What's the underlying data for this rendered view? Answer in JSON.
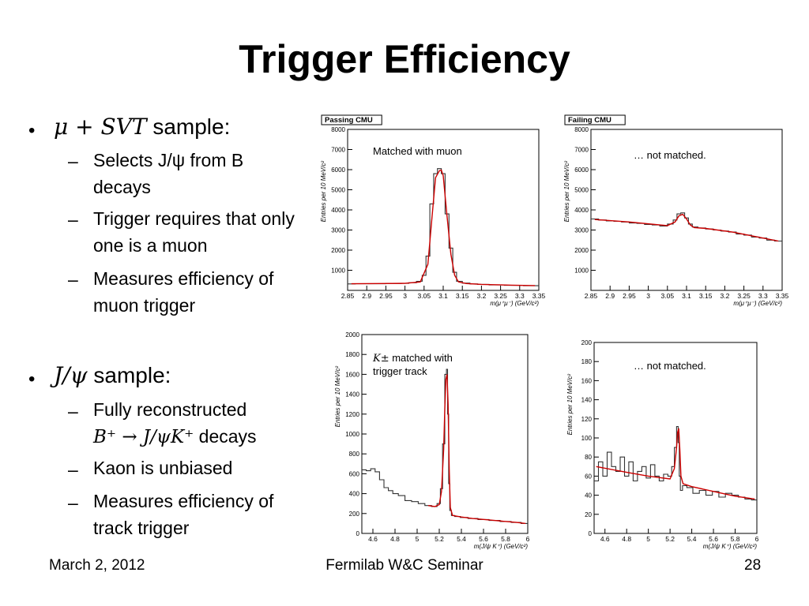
{
  "slide": {
    "title": "Trigger Efficiency",
    "bullet1": {
      "math": "μ + SVT",
      "text": " sample:"
    },
    "bullet1_items": [
      "Selects J/ψ from B decays",
      "Trigger requires that only one is a muon",
      "Measures efficiency of muon trigger"
    ],
    "bullet2": {
      "math": "J/ψ",
      "text": " sample:"
    },
    "bullet2_items": [
      {
        "line1": "Fully reconstructed",
        "math": "B⁺ → J/ψK⁺",
        "line2": " decays"
      },
      {
        "line1": "Kaon is unbiased"
      },
      {
        "line1": "Measures efficiency of",
        "line2": "track trigger"
      }
    ],
    "footer": {
      "date": "March 2, 2012",
      "center": "Fermilab W&C Seminar",
      "page": "28"
    }
  },
  "chart_data": [
    {
      "type": "line",
      "tag": "Passing CMU",
      "annotation": "Matched with muon",
      "xlabel": "m(μ⁺μ⁻)  (GeV/c²)",
      "ylabel": "Entries per 10 MeV/c²",
      "xlim": [
        2.85,
        3.35
      ],
      "ylim": [
        0,
        8000
      ],
      "xticks": [
        "2.85",
        "2.9",
        "2.95",
        "3",
        "3.05",
        "3.1",
        "3.15",
        "3.2",
        "3.25",
        "3.3",
        "3.35"
      ],
      "yticks": [
        "1000",
        "2000",
        "3000",
        "4000",
        "5000",
        "6000",
        "7000",
        "8000"
      ],
      "series": [
        {
          "style": "histogram",
          "color": "#333333",
          "x": [
            2.86,
            2.88,
            2.9,
            2.92,
            2.94,
            2.96,
            2.98,
            3.0,
            3.02,
            3.04,
            3.05,
            3.06,
            3.07,
            3.08,
            3.09,
            3.1,
            3.11,
            3.12,
            3.13,
            3.14,
            3.16,
            3.18,
            3.2,
            3.24,
            3.28,
            3.34
          ],
          "y": [
            320,
            330,
            330,
            330,
            330,
            340,
            340,
            350,
            380,
            450,
            750,
            1700,
            4300,
            5800,
            6050,
            5800,
            3800,
            2100,
            900,
            450,
            360,
            320,
            300,
            270,
            250,
            230
          ]
        },
        {
          "style": "fit",
          "color": "#cc0000",
          "x": [
            2.86,
            2.94,
            3.0,
            3.04,
            3.06,
            3.07,
            3.08,
            3.09,
            3.095,
            3.1,
            3.11,
            3.12,
            3.13,
            3.14,
            3.16,
            3.2,
            3.28,
            3.34
          ],
          "y": [
            330,
            340,
            350,
            420,
            1300,
            3500,
            5600,
            5950,
            5980,
            5700,
            3700,
            1800,
            750,
            420,
            340,
            300,
            260,
            240
          ]
        }
      ]
    },
    {
      "type": "line",
      "tag": "Failing CMU",
      "annotation": "… not matched.",
      "xlabel": "m(μ⁺μ⁻)  (GeV/c²)",
      "ylabel": "Entries per 10 MeV/c²",
      "xlim": [
        2.85,
        3.35
      ],
      "ylim": [
        0,
        8000
      ],
      "xticks": [
        "2.85",
        "2.9",
        "2.95",
        "3",
        "3.05",
        "3.1",
        "3.15",
        "3.2",
        "3.25",
        "3.3",
        "3.35"
      ],
      "yticks": [
        "1000",
        "2000",
        "3000",
        "4000",
        "5000",
        "6000",
        "7000",
        "8000"
      ],
      "series": [
        {
          "style": "histogram",
          "color": "#333333",
          "x": [
            2.86,
            2.88,
            2.9,
            2.92,
            2.94,
            2.96,
            2.98,
            3.0,
            3.02,
            3.04,
            3.06,
            3.07,
            3.08,
            3.09,
            3.1,
            3.11,
            3.12,
            3.14,
            3.16,
            3.18,
            3.2,
            3.22,
            3.24,
            3.26,
            3.28,
            3.3,
            3.32,
            3.34
          ],
          "y": [
            3550,
            3500,
            3450,
            3430,
            3400,
            3350,
            3330,
            3280,
            3250,
            3200,
            3300,
            3500,
            3800,
            3850,
            3600,
            3300,
            3150,
            3100,
            3050,
            3000,
            2950,
            2900,
            2800,
            2750,
            2650,
            2600,
            2500,
            2450
          ]
        },
        {
          "style": "fit",
          "color": "#cc0000",
          "x": [
            2.86,
            2.95,
            3.02,
            3.05,
            3.07,
            3.08,
            3.09,
            3.1,
            3.11,
            3.12,
            3.15,
            3.22,
            3.3,
            3.34
          ],
          "y": [
            3520,
            3400,
            3270,
            3220,
            3400,
            3700,
            3780,
            3550,
            3250,
            3120,
            3080,
            2900,
            2600,
            2450
          ]
        }
      ]
    },
    {
      "type": "line",
      "annotation_math": "K±",
      "annotation": " matched with trigger track",
      "xlabel": "m(J/ψ K⁺)  (GeV/c²)",
      "ylabel": "Entries per 10 MeV/c²",
      "xlim": [
        4.5,
        6.0
      ],
      "ylim": [
        0,
        2000
      ],
      "xticks": [
        "4.6",
        "4.8",
        "5",
        "5.2",
        "5.4",
        "5.6",
        "5.8",
        "6"
      ],
      "yticks": [
        "0",
        "200",
        "400",
        "600",
        "800",
        "1000",
        "1200",
        "1400",
        "1600",
        "1800",
        "2000"
      ],
      "series": [
        {
          "style": "histogram",
          "color": "#333333",
          "x": [
            4.52,
            4.56,
            4.6,
            4.64,
            4.68,
            4.72,
            4.76,
            4.8,
            4.86,
            4.92,
            4.98,
            5.04,
            5.1,
            5.16,
            5.2,
            5.22,
            5.24,
            5.26,
            5.27,
            5.28,
            5.29,
            5.3,
            5.32,
            5.36,
            5.42,
            5.5,
            5.6,
            5.7,
            5.8,
            5.9,
            5.98
          ],
          "y": [
            640,
            630,
            650,
            620,
            540,
            460,
            430,
            400,
            380,
            330,
            320,
            300,
            280,
            270,
            300,
            450,
            900,
            1600,
            1650,
            1200,
            500,
            230,
            180,
            170,
            160,
            150,
            140,
            130,
            120,
            110,
            100
          ]
        },
        {
          "style": "fit",
          "color": "#cc0000",
          "x": [
            5.1,
            5.16,
            5.2,
            5.22,
            5.24,
            5.25,
            5.26,
            5.27,
            5.28,
            5.29,
            5.3,
            5.32,
            5.4,
            5.5,
            5.7,
            5.9,
            5.98
          ],
          "y": [
            280,
            270,
            290,
            420,
            850,
            1250,
            1550,
            1600,
            1300,
            650,
            260,
            180,
            165,
            150,
            130,
            110,
            100
          ]
        }
      ]
    },
    {
      "type": "line",
      "annotation": "… not matched.",
      "xlabel": "m(J/ψ K⁺)  (GeV/c²)",
      "ylabel": "Entries per 10 MeV/c²",
      "xlim": [
        4.5,
        6.0
      ],
      "ylim": [
        0,
        200
      ],
      "xticks": [
        "4.6",
        "4.8",
        "5",
        "5.2",
        "5.4",
        "5.6",
        "5.8",
        "6"
      ],
      "yticks": [
        "0",
        "20",
        "40",
        "60",
        "80",
        "100",
        "120",
        "140",
        "160",
        "180",
        "200"
      ],
      "series": [
        {
          "style": "histogram",
          "color": "#333333",
          "x": [
            4.52,
            4.56,
            4.6,
            4.64,
            4.68,
            4.72,
            4.76,
            4.8,
            4.84,
            4.88,
            4.92,
            4.96,
            5.0,
            5.04,
            5.08,
            5.12,
            5.16,
            5.2,
            5.23,
            5.25,
            5.27,
            5.28,
            5.29,
            5.3,
            5.33,
            5.38,
            5.44,
            5.5,
            5.56,
            5.62,
            5.68,
            5.74,
            5.8,
            5.86,
            5.92,
            5.98
          ],
          "y": [
            55,
            75,
            60,
            85,
            70,
            65,
            80,
            60,
            75,
            55,
            65,
            70,
            58,
            72,
            60,
            55,
            62,
            60,
            70,
            90,
            112,
            95,
            60,
            45,
            50,
            48,
            42,
            45,
            40,
            44,
            38,
            42,
            40,
            38,
            36,
            35
          ]
        },
        {
          "style": "fit",
          "color": "#cc0000",
          "x": [
            4.52,
            4.8,
            5.0,
            5.2,
            5.24,
            5.26,
            5.27,
            5.28,
            5.29,
            5.3,
            5.32,
            5.4,
            5.6,
            5.8,
            5.98
          ],
          "y": [
            70,
            64,
            60,
            57,
            68,
            90,
            106,
            110,
            88,
            60,
            52,
            49,
            44,
            39,
            36
          ]
        }
      ]
    }
  ]
}
